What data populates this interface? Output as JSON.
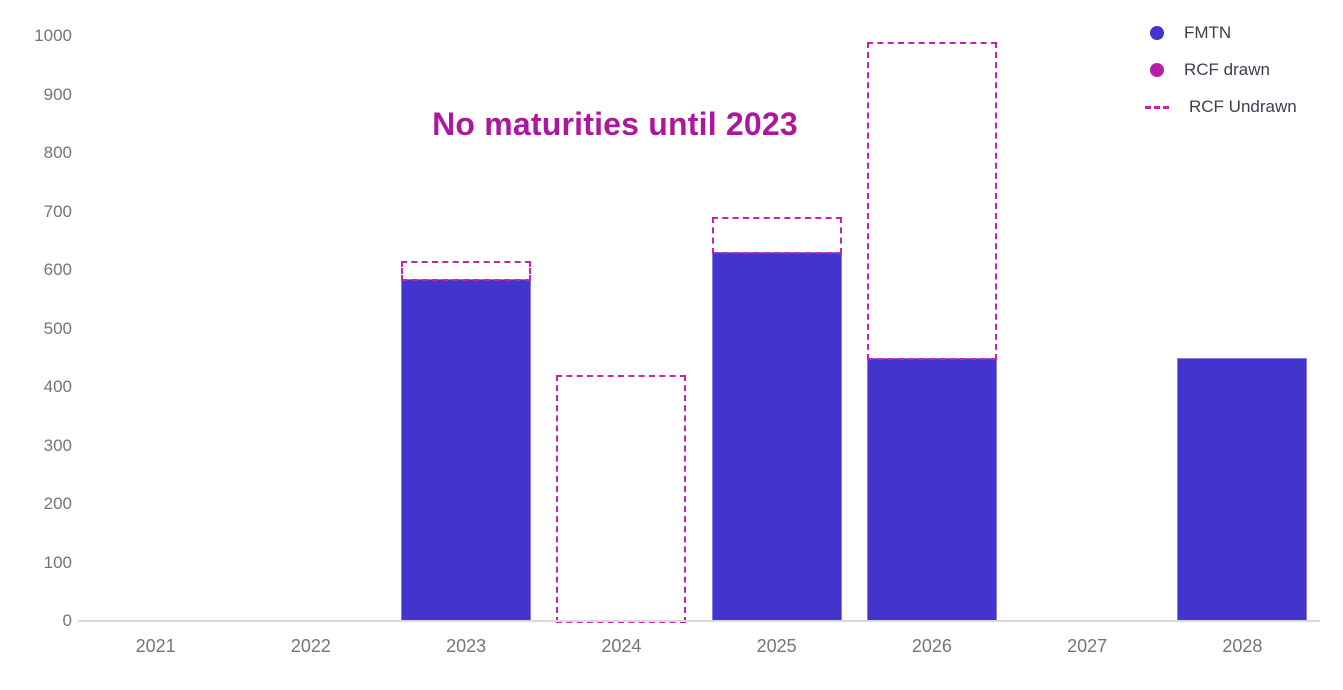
{
  "title": {
    "text": "No maturities until 2023",
    "color": "#ab189d"
  },
  "legend": {
    "items": [
      {
        "label": "FMTN",
        "marker": "circle-icon",
        "color": "#4434ce"
      },
      {
        "label": "RCF drawn",
        "marker": "circle-icon",
        "color": "#b81fa4"
      },
      {
        "label": "RCF Undrawn",
        "marker": "dashed-line-icon",
        "color": "#c224ad"
      }
    ]
  },
  "chart_data": {
    "type": "bar",
    "stacked": true,
    "categories": [
      "2021",
      "2022",
      "2023",
      "2024",
      "2025",
      "2026",
      "2027",
      "2028"
    ],
    "series": [
      {
        "name": "FMTN",
        "style": "solid",
        "color": "#4434ce",
        "values": [
          0,
          0,
          585,
          0,
          630,
          450,
          0,
          450
        ]
      },
      {
        "name": "RCF drawn",
        "style": "solid",
        "color": "#b81fa4",
        "values": [
          0,
          0,
          0,
          0,
          0,
          0,
          0,
          0
        ]
      },
      {
        "name": "RCF Undrawn",
        "style": "dashed-outline",
        "color": "#c224ad",
        "values": [
          0,
          0,
          30,
          420,
          60,
          540,
          0,
          0
        ]
      }
    ],
    "title": "No maturities until 2023",
    "xlabel": "",
    "ylabel": "",
    "ylim": [
      0,
      1000
    ],
    "y_ticks": [
      0,
      100,
      200,
      300,
      400,
      500,
      600,
      700,
      800,
      900,
      1000
    ],
    "grid": false,
    "legend_position": "top-right",
    "annotations": [
      "No maturities until 2023"
    ]
  },
  "axis_style": {
    "tick_color": "#757575",
    "axis_line_color": "#d9d9d9"
  }
}
